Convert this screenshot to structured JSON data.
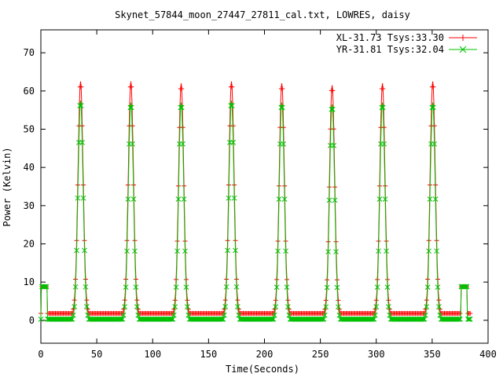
{
  "chart_data": {
    "type": "line",
    "title": "Skynet_57844_moon_27447_27811_cal.txt, LOWRES, daisy",
    "xlabel": "Time(Seconds)",
    "ylabel": "Power (Kelvin)",
    "xlim": [
      0,
      400
    ],
    "ylim": [
      -6,
      76
    ],
    "xticks": [
      0,
      50,
      100,
      150,
      200,
      250,
      300,
      350,
      400
    ],
    "yticks": [
      0,
      10,
      20,
      30,
      40,
      50,
      60,
      70
    ],
    "grid": false,
    "legend_position": "top-right",
    "series": [
      {
        "name": "XL-31.73 Tsys:33.30",
        "color": "#ff0000",
        "marker": "plus",
        "baseline": 1.8,
        "peaks": [
          {
            "x": 35.5,
            "y": 62.5
          },
          {
            "x": 80.5,
            "y": 62.5
          },
          {
            "x": 125.5,
            "y": 62.0
          },
          {
            "x": 170.5,
            "y": 62.5
          },
          {
            "x": 215.5,
            "y": 62.0
          },
          {
            "x": 260.5,
            "y": 61.5
          },
          {
            "x": 305.5,
            "y": 62.0
          },
          {
            "x": 350.5,
            "y": 62.5
          }
        ],
        "cal_segments": [
          {
            "x_start": 0.5,
            "x_end": 5.5,
            "y": 8.8
          },
          {
            "x_start": 376.0,
            "x_end": 381.0,
            "y": 8.8
          }
        ]
      },
      {
        "name": "YR-31.81 Tsys:32.04",
        "color": "#00c000",
        "marker": "x",
        "baseline": 0.3,
        "peaks": [
          {
            "x": 35.5,
            "y": 57.5
          },
          {
            "x": 80.5,
            "y": 57.0
          },
          {
            "x": 125.5,
            "y": 57.0
          },
          {
            "x": 170.5,
            "y": 57.5
          },
          {
            "x": 215.5,
            "y": 57.0
          },
          {
            "x": 260.5,
            "y": 56.5
          },
          {
            "x": 305.5,
            "y": 57.0
          },
          {
            "x": 350.5,
            "y": 57.0
          }
        ],
        "cal_segments": [
          {
            "x_start": 0.5,
            "x_end": 5.5,
            "y": 8.8
          },
          {
            "x_start": 376.0,
            "x_end": 381.0,
            "y": 8.8
          }
        ]
      }
    ],
    "x_range": [
      0,
      384
    ],
    "peak_half_width_s": 7
  }
}
